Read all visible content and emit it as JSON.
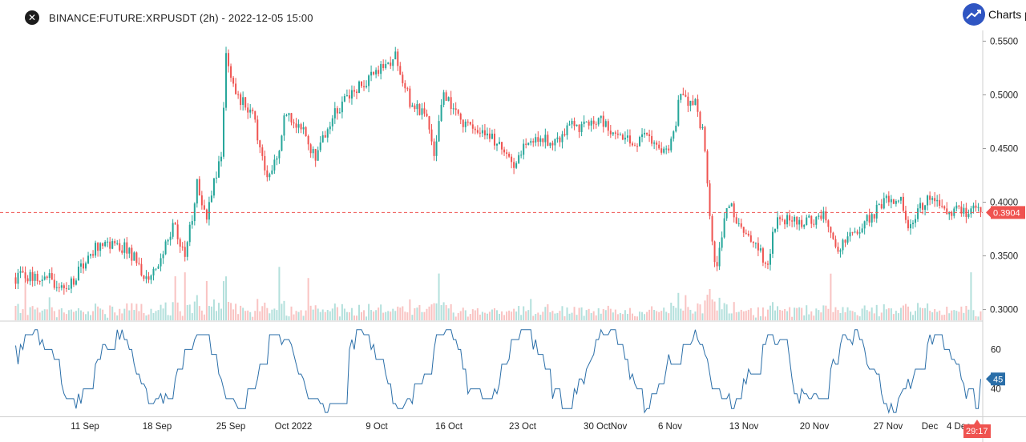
{
  "header": {
    "title": "BINANCE:FUTURE:XRPUSDT (2h) - 2022-12-05 15:00",
    "brand": "Charts p",
    "close_icon": "close-icon",
    "brand_icon": "trend-line-icon"
  },
  "chart_data": {
    "type": "candlestick",
    "symbol": "BINANCE:FUTURE:XRPUSDT",
    "interval": "2h",
    "timestamp": "2022-12-05 15:00",
    "price_axis": {
      "min": 0.29,
      "max": 0.56,
      "ticks": [
        "0.5500",
        "0.5000",
        "0.4500",
        "0.4000",
        "0.3500",
        "0.3000"
      ]
    },
    "time_axis": [
      "11 Sep",
      "18 Sep",
      "25 Sep",
      "Oct 2022",
      "9 Oct",
      "16 Oct",
      "23 Oct",
      "30 Oct",
      "Nov",
      "6 Nov",
      "13 Nov",
      "20 Nov",
      "27 Nov",
      "Dec",
      "4 Dec"
    ],
    "last_price": 0.3904,
    "last_price_label": "0.3904",
    "countdown": "29:17",
    "price_path": [
      [
        0,
        0.33
      ],
      [
        2,
        0.33
      ],
      [
        3,
        0.316
      ],
      [
        4,
        0.335
      ],
      [
        5,
        0.358
      ],
      [
        6,
        0.36
      ],
      [
        7,
        0.358
      ],
      [
        8,
        0.336
      ],
      [
        8.5,
        0.326
      ],
      [
        9,
        0.345
      ],
      [
        10,
        0.38
      ],
      [
        10.7,
        0.345
      ],
      [
        11.5,
        0.42
      ],
      [
        12,
        0.385
      ],
      [
        13,
        0.445
      ],
      [
        13.3,
        0.535
      ],
      [
        14,
        0.5
      ],
      [
        15,
        0.48
      ],
      [
        16,
        0.42
      ],
      [
        16.5,
        0.44
      ],
      [
        17,
        0.48
      ],
      [
        18,
        0.47
      ],
      [
        19,
        0.44
      ],
      [
        20,
        0.48
      ],
      [
        21,
        0.5
      ],
      [
        22,
        0.51
      ],
      [
        23,
        0.525
      ],
      [
        24,
        0.535
      ],
      [
        25,
        0.49
      ],
      [
        26,
        0.48
      ],
      [
        26.5,
        0.44
      ],
      [
        27,
        0.505
      ],
      [
        28,
        0.48
      ],
      [
        29,
        0.465
      ],
      [
        30,
        0.46
      ],
      [
        31,
        0.445
      ],
      [
        31.5,
        0.43
      ],
      [
        32,
        0.45
      ],
      [
        33,
        0.46
      ],
      [
        34,
        0.455
      ],
      [
        35,
        0.47
      ],
      [
        36,
        0.47
      ],
      [
        37,
        0.475
      ],
      [
        38,
        0.46
      ],
      [
        39,
        0.455
      ],
      [
        40,
        0.46
      ],
      [
        41,
        0.45
      ],
      [
        41.5,
        0.455
      ],
      [
        42,
        0.5
      ],
      [
        43,
        0.49
      ],
      [
        43.5,
        0.46
      ],
      [
        43.8,
        0.4
      ],
      [
        44,
        0.37
      ],
      [
        44.3,
        0.335
      ],
      [
        45,
        0.4
      ],
      [
        46,
        0.375
      ],
      [
        47,
        0.355
      ],
      [
        47.5,
        0.335
      ],
      [
        48,
        0.38
      ],
      [
        49,
        0.385
      ],
      [
        50,
        0.38
      ],
      [
        51,
        0.39
      ],
      [
        52,
        0.355
      ],
      [
        53,
        0.37
      ],
      [
        54,
        0.385
      ],
      [
        55,
        0.405
      ],
      [
        56,
        0.4
      ],
      [
        56.5,
        0.375
      ],
      [
        57,
        0.395
      ],
      [
        58,
        0.405
      ],
      [
        59,
        0.392
      ],
      [
        60,
        0.392
      ],
      [
        61,
        0.39
      ]
    ],
    "indicator": {
      "type": "line",
      "ticks": [
        "60",
        "40"
      ],
      "range": [
        26,
        74
      ],
      "last_value": 45,
      "last_label": "45"
    }
  },
  "colors": {
    "up": "#26a69a",
    "down": "#ef5350",
    "last_price": "#ef5350",
    "indicator": "#2a6ea8",
    "indicator_badge": "#2a6ea8",
    "grid": "#dddddd",
    "brand": "#2f55c2"
  }
}
